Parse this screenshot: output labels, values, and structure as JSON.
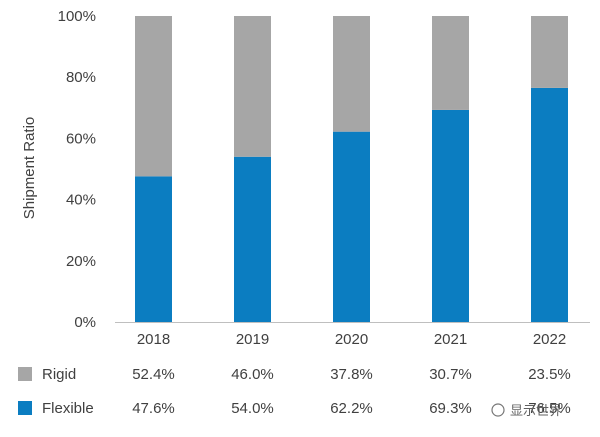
{
  "chart_data": {
    "type": "bar",
    "stacked": true,
    "categories": [
      "2018",
      "2019",
      "2020",
      "2021",
      "2022"
    ],
    "series": [
      {
        "name": "Flexible",
        "values": [
          47.6,
          54.0,
          62.2,
          69.3,
          76.5
        ],
        "labels": [
          "47.6%",
          "54.0%",
          "62.2%",
          "69.3%",
          "76.5%"
        ],
        "color": "#0b7dc1"
      },
      {
        "name": "Rigid",
        "values": [
          52.4,
          46.0,
          37.8,
          30.7,
          23.5
        ],
        "labels": [
          "52.4%",
          "46.0%",
          "37.8%",
          "30.7%",
          "23.5%"
        ],
        "color": "#a6a6a6"
      }
    ],
    "ylabel": "Shipment Ratio",
    "yticks": [
      "0%",
      "20%",
      "40%",
      "60%",
      "80%",
      "100%"
    ],
    "ylim": [
      0,
      100
    ],
    "grid": false,
    "legend": "bottom table"
  },
  "watermark_text": "显示世界"
}
